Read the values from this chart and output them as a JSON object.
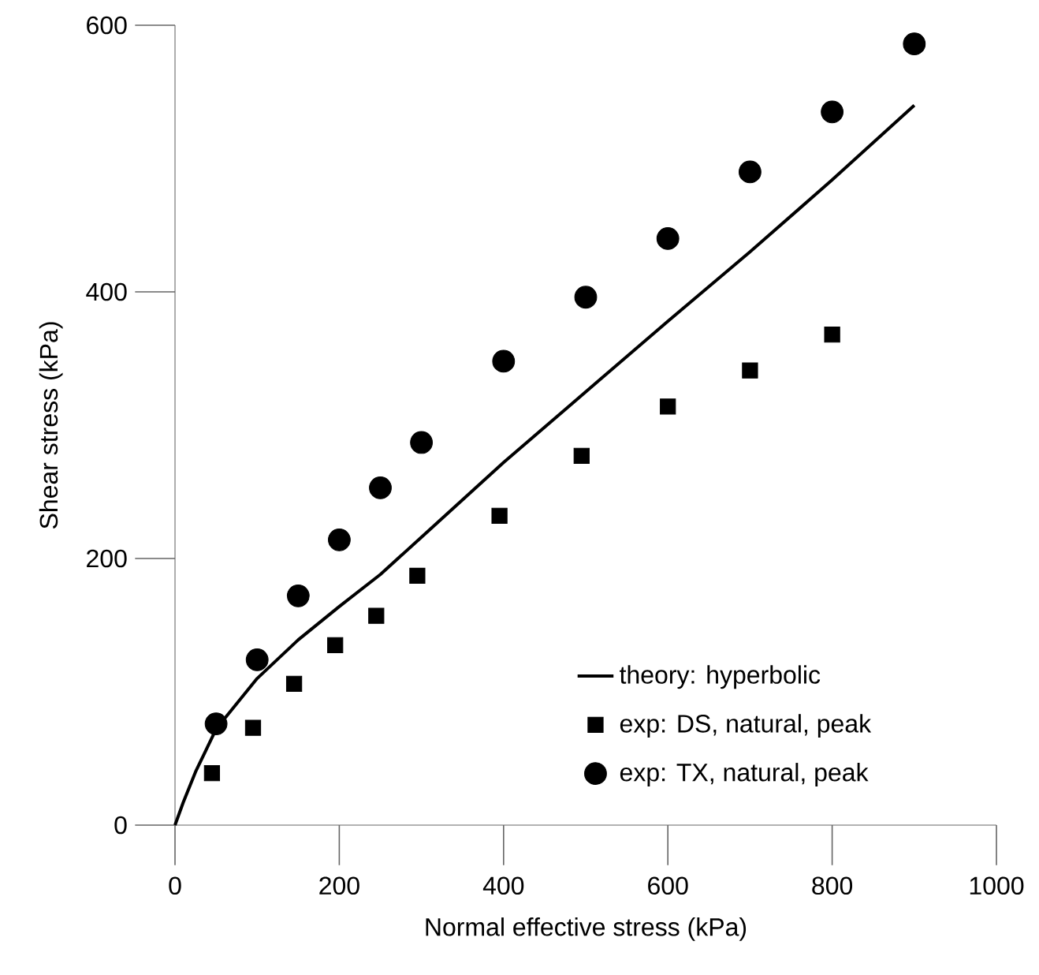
{
  "chart_data": {
    "type": "scatter",
    "xlabel": "Normal effective stress (kPa)",
    "ylabel": "Shear stress (kPa)",
    "xlim": [
      0,
      1000
    ],
    "xticks": [
      0,
      200,
      400,
      600,
      800,
      1000
    ],
    "ylim": [
      0,
      600
    ],
    "yticks": [
      0,
      200,
      400,
      600
    ],
    "legend": "bottom right",
    "series": [
      {
        "name": "theory: hyperbolic",
        "type": "line",
        "marker": "none",
        "line_style": "solid",
        "color": "#000000",
        "x": [
          0,
          10,
          25,
          50,
          100,
          150,
          200,
          250,
          300,
          400,
          500,
          600,
          700,
          800,
          900
        ],
        "values": [
          0,
          17,
          40,
          72,
          110,
          139,
          164,
          188,
          216,
          272,
          325,
          378,
          430,
          484,
          540
        ]
      },
      {
        "name": "exp: DS, natural, peak",
        "marker": "square",
        "color": "#000000",
        "x": [
          45,
          95,
          145,
          195,
          245,
          295,
          395,
          495,
          600,
          700,
          800
        ],
        "values": [
          39,
          73,
          106,
          135,
          157,
          187,
          232,
          277,
          314,
          341,
          368
        ]
      },
      {
        "name": "exp: TX, natural, peak",
        "marker": "circle",
        "color": "#000000",
        "x": [
          50,
          100,
          150,
          200,
          250,
          300,
          400,
          500,
          600,
          700,
          800,
          900
        ],
        "values": [
          76,
          124,
          172,
          214,
          253,
          287,
          348,
          396,
          440,
          490,
          535,
          586
        ]
      }
    ]
  }
}
